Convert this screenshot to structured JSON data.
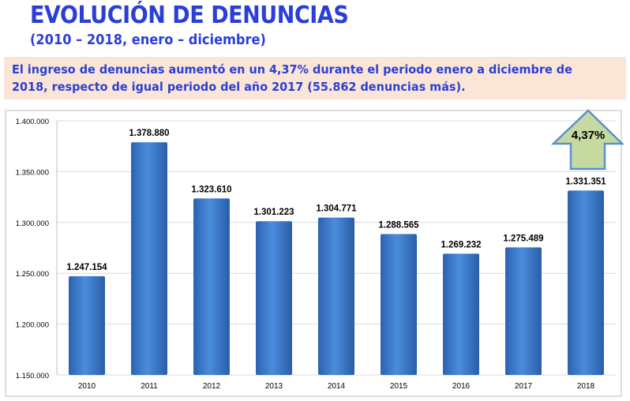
{
  "header": {
    "title": "EVOLUCIÓN DE DENUNCIAS",
    "subtitle": "(2010 – 2018, enero – diciembre)"
  },
  "note": {
    "text": "El ingreso de denuncias aumentó en un 4,37% durante el periodo enero a diciembre de 2018, respecto de igual periodo del año 2017 (55.862 denuncias más)."
  },
  "colors": {
    "bar": "#3f7fd0",
    "title": "#2b3fd6",
    "note_bg": "#fbe5d6",
    "arrow_fill": "#c6d9a0",
    "arrow_stroke": "#5b8fd0"
  },
  "chart_data": {
    "type": "bar",
    "title": "",
    "xlabel": "",
    "ylabel": "",
    "categories": [
      "2010",
      "2011",
      "2012",
      "2013",
      "2014",
      "2015",
      "2016",
      "2017",
      "2018"
    ],
    "values": [
      1247154,
      1378880,
      1323610,
      1301223,
      1304771,
      1288565,
      1269232,
      1275489,
      1331351
    ],
    "value_labels": [
      "1.247.154",
      "1.378.880",
      "1.323.610",
      "1.301.223",
      "1.304.771",
      "1.288.565",
      "1.269.232",
      "1.275.489",
      "1.331.351"
    ],
    "ylim": [
      1150000,
      1400000
    ],
    "yticks": [
      1150000,
      1200000,
      1250000,
      1300000,
      1350000,
      1400000
    ],
    "ytick_labels": [
      "1.150.000",
      "1.200.000",
      "1.250.000",
      "1.300.000",
      "1.350.000",
      "1.400.000"
    ],
    "grid": true,
    "annotation": {
      "text": "4,37%",
      "category": "2018"
    }
  }
}
